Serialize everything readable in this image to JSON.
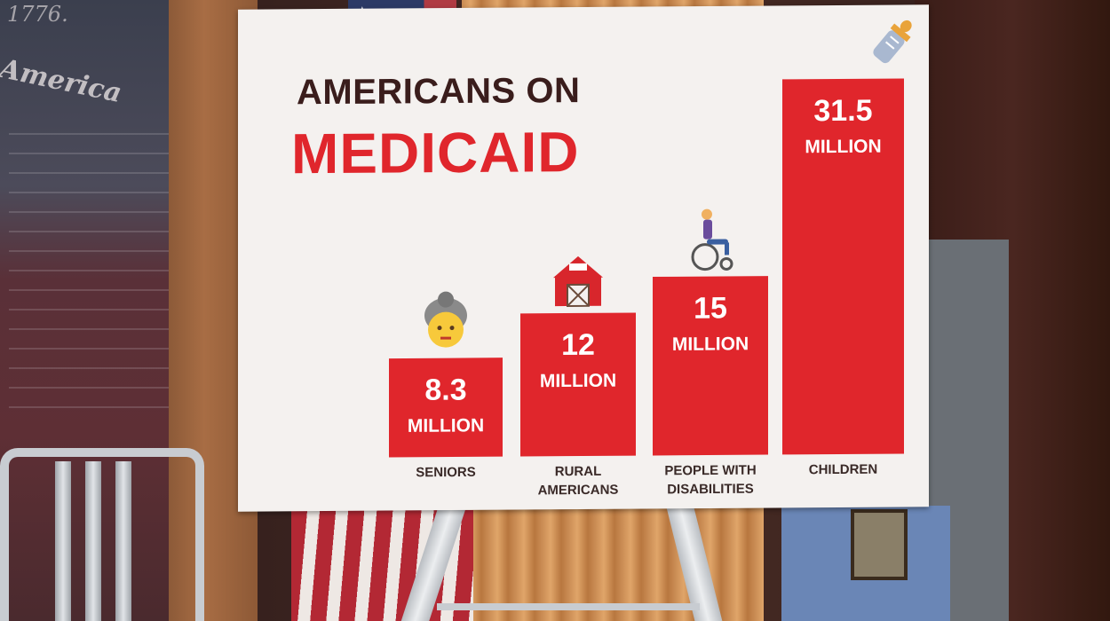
{
  "poster": {
    "title_line1": "AMERICANS ON",
    "title_line2": "MEDICAID",
    "accent_color": "#e0262c",
    "title_color": "#3a1d1c"
  },
  "background": {
    "year_text": "1776.",
    "script_text": "America"
  },
  "chart_data": {
    "type": "bar",
    "title": "AMERICANS ON MEDICAID",
    "categories": [
      "SENIORS",
      "RURAL AMERICANS",
      "PEOPLE WITH DISABILITIES",
      "CHILDREN"
    ],
    "category_lines": [
      [
        "SENIORS"
      ],
      [
        "RURAL",
        "AMERICANS"
      ],
      [
        "PEOPLE WITH",
        "DISABILITIES"
      ],
      [
        "CHILDREN"
      ]
    ],
    "values": [
      8.3,
      12,
      15,
      31.5
    ],
    "value_labels": [
      "8.3",
      "12",
      "15",
      "31.5"
    ],
    "unit_label": "MILLION",
    "icons": [
      "senior-icon",
      "barn-icon",
      "wheelchair-icon",
      "baby-bottle-icon"
    ],
    "xlabel": "",
    "ylabel": "",
    "ylim": [
      0,
      31.5
    ]
  }
}
